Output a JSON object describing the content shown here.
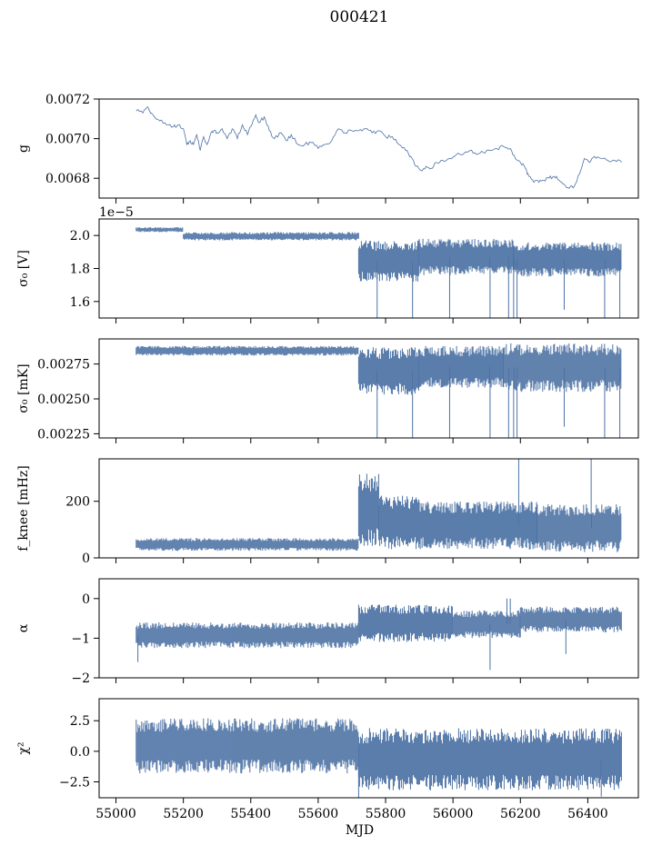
{
  "suptitle": "000421",
  "colors": {
    "series": "#4c72a4",
    "frame": "#000000",
    "background": "#ffffff"
  },
  "chart_data": [
    {
      "type": "line",
      "ylabel": "g",
      "xlim": [
        54950,
        56550
      ],
      "ylim": [
        0.0067,
        0.0072
      ],
      "yticks": [
        {
          "v": 0.0068,
          "label": "0.0068"
        },
        {
          "v": 0.007,
          "label": "0.0070"
        },
        {
          "v": 0.0072,
          "label": "0.0072"
        }
      ],
      "x": [
        55060,
        55080,
        55095,
        55105,
        55115,
        55130,
        55150,
        55170,
        55185,
        55200,
        55210,
        55220,
        55230,
        55240,
        55250,
        55260,
        55270,
        55280,
        55290,
        55300,
        55315,
        55330,
        55345,
        55360,
        55375,
        55390,
        55400,
        55415,
        55425,
        55440,
        55455,
        55470,
        55490,
        55505,
        55520,
        55540,
        55560,
        55580,
        55600,
        55620,
        55640,
        55660,
        55680,
        55700,
        55720,
        55740,
        55760,
        55780,
        55800,
        55820,
        55840,
        55860,
        55875,
        55890,
        55905,
        55920,
        55935,
        55950,
        55970,
        55990,
        56010,
        56030,
        56050,
        56070,
        56090,
        56110,
        56130,
        56150,
        56170,
        56185,
        56200,
        56215,
        56225,
        56240,
        56255,
        56270,
        56285,
        56300,
        56315,
        56330,
        56345,
        56360,
        56375,
        56390,
        56405,
        56420,
        56440,
        56460,
        56480,
        56500
      ],
      "y": [
        0.00714,
        0.00713,
        0.00716,
        0.00713,
        0.00711,
        0.00709,
        0.00707,
        0.00706,
        0.00707,
        0.00705,
        0.00697,
        0.00699,
        0.00697,
        0.00702,
        0.00694,
        0.00701,
        0.00697,
        0.00702,
        0.00704,
        0.00703,
        0.00705,
        0.007,
        0.00705,
        0.007,
        0.00707,
        0.00702,
        0.00706,
        0.00712,
        0.00708,
        0.00711,
        0.00704,
        0.007,
        0.00703,
        0.00699,
        0.00702,
        0.00697,
        0.00697,
        0.00698,
        0.00695,
        0.00697,
        0.00699,
        0.00705,
        0.00703,
        0.00704,
        0.00704,
        0.00705,
        0.00703,
        0.00704,
        0.00701,
        0.00701,
        0.00697,
        0.00694,
        0.00691,
        0.00686,
        0.00684,
        0.00686,
        0.00685,
        0.00688,
        0.00689,
        0.0069,
        0.00692,
        0.00692,
        0.00694,
        0.00692,
        0.00693,
        0.00694,
        0.00695,
        0.00696,
        0.00695,
        0.0069,
        0.00688,
        0.00685,
        0.00681,
        0.00678,
        0.00678,
        0.00679,
        0.0068,
        0.00681,
        0.00679,
        0.00677,
        0.00675,
        0.00676,
        0.00682,
        0.0069,
        0.00688,
        0.00691,
        0.0069,
        0.00689,
        0.00689,
        0.00688
      ]
    },
    {
      "type": "area",
      "ylabel": "σ₀ [V]",
      "offset_text": "1e−5",
      "xlim": [
        54950,
        56550
      ],
      "ylim": [
        1.5,
        2.1
      ],
      "yticks": [
        {
          "v": 1.6,
          "label": "1.6"
        },
        {
          "v": 1.8,
          "label": "1.8"
        },
        {
          "v": 2.0,
          "label": "2.0"
        }
      ],
      "segments": [
        {
          "x": [
            55060,
            55200
          ],
          "low": 2.02,
          "high": 2.05
        },
        {
          "x": [
            55200,
            55450
          ],
          "low": 1.97,
          "high": 2.02
        },
        {
          "x": [
            55450,
            55720
          ],
          "low": 1.97,
          "high": 2.02
        },
        {
          "x": [
            55720,
            55900
          ],
          "low": 1.72,
          "high": 1.97
        },
        {
          "x": [
            55900,
            56180
          ],
          "low": 1.76,
          "high": 1.98
        },
        {
          "x": [
            56180,
            56500
          ],
          "low": 1.75,
          "high": 1.96
        }
      ],
      "spikes": [
        {
          "x": 55775,
          "y": 1.5
        },
        {
          "x": 55880,
          "y": 1.5
        },
        {
          "x": 55990,
          "y": 1.5
        },
        {
          "x": 56110,
          "y": 1.5
        },
        {
          "x": 56165,
          "y": 1.5
        },
        {
          "x": 56180,
          "y": 1.5
        },
        {
          "x": 56190,
          "y": 1.5
        },
        {
          "x": 56330,
          "y": 1.55
        },
        {
          "x": 56450,
          "y": 1.5
        },
        {
          "x": 56495,
          "y": 1.5
        }
      ]
    },
    {
      "type": "area",
      "ylabel": "σ₀ [mK]",
      "xlim": [
        54950,
        56550
      ],
      "ylim": [
        0.00222,
        0.00293
      ],
      "yticks": [
        {
          "v": 0.00225,
          "label": "0.00225"
        },
        {
          "v": 0.0025,
          "label": "0.00250"
        },
        {
          "v": 0.00275,
          "label": "0.00275"
        }
      ],
      "segments": [
        {
          "x": [
            55060,
            55720
          ],
          "low": 0.00281,
          "high": 0.00288
        },
        {
          "x": [
            55720,
            55900
          ],
          "low": 0.00253,
          "high": 0.00287
        },
        {
          "x": [
            55900,
            56150
          ],
          "low": 0.00258,
          "high": 0.00288
        },
        {
          "x": [
            56150,
            56500
          ],
          "low": 0.00255,
          "high": 0.0029
        }
      ],
      "spikes": [
        {
          "x": 55775,
          "y": 0.00222
        },
        {
          "x": 55880,
          "y": 0.00222
        },
        {
          "x": 55990,
          "y": 0.00222
        },
        {
          "x": 56110,
          "y": 0.00222
        },
        {
          "x": 56165,
          "y": 0.00222
        },
        {
          "x": 56180,
          "y": 0.00222
        },
        {
          "x": 56190,
          "y": 0.00222
        },
        {
          "x": 56330,
          "y": 0.0023
        },
        {
          "x": 56450,
          "y": 0.00222
        },
        {
          "x": 56495,
          "y": 0.00222
        }
      ]
    },
    {
      "type": "area",
      "ylabel": "f_knee [mHz]",
      "xlim": [
        54950,
        56550
      ],
      "ylim": [
        0,
        350
      ],
      "yticks": [
        {
          "v": 0,
          "label": "0"
        },
        {
          "v": 200,
          "label": "200"
        }
      ],
      "segments": [
        {
          "x": [
            55060,
            55720
          ],
          "low": 25,
          "high": 70
        },
        {
          "x": [
            55720,
            55780
          ],
          "low": 40,
          "high": 300
        },
        {
          "x": [
            55780,
            55900
          ],
          "low": 30,
          "high": 220
        },
        {
          "x": [
            55900,
            56250
          ],
          "low": 30,
          "high": 200
        },
        {
          "x": [
            56250,
            56500
          ],
          "low": 20,
          "high": 190
        }
      ],
      "spikes": [
        {
          "x": 56195,
          "y": 350
        },
        {
          "x": 56410,
          "y": 350
        }
      ]
    },
    {
      "type": "area",
      "ylabel": "α",
      "xlim": [
        54950,
        56550
      ],
      "ylim": [
        -2,
        0.5
      ],
      "yticks": [
        {
          "v": -2,
          "label": "−2"
        },
        {
          "v": -1,
          "label": "−1"
        },
        {
          "v": 0,
          "label": "0"
        }
      ],
      "segments": [
        {
          "x": [
            55060,
            55720
          ],
          "low": -1.25,
          "high": -0.6
        },
        {
          "x": [
            55720,
            56000
          ],
          "low": -1.1,
          "high": -0.15
        },
        {
          "x": [
            56000,
            56200
          ],
          "low": -1.0,
          "high": -0.3
        },
        {
          "x": [
            56200,
            56500
          ],
          "low": -0.85,
          "high": -0.2
        }
      ],
      "spikes": [
        {
          "x": 55065,
          "y": -1.6
        },
        {
          "x": 56110,
          "y": -1.8
        },
        {
          "x": 56335,
          "y": -1.4
        },
        {
          "x": 56160,
          "y": 0.0
        },
        {
          "x": 56170,
          "y": 0.0
        }
      ]
    },
    {
      "type": "area",
      "ylabel": "χ²",
      "xlabel": "MJD",
      "xlim": [
        54950,
        56550
      ],
      "ylim": [
        -3.8,
        4.3
      ],
      "yticks": [
        {
          "v": -2.5,
          "label": "−2.5"
        },
        {
          "v": 0.0,
          "label": "0.0"
        },
        {
          "v": 2.5,
          "label": "2.5"
        }
      ],
      "xticks": [
        {
          "v": 55000,
          "label": "55000"
        },
        {
          "v": 55200,
          "label": "55200"
        },
        {
          "v": 55400,
          "label": "55400"
        },
        {
          "v": 55600,
          "label": "55600"
        },
        {
          "v": 55800,
          "label": "55800"
        },
        {
          "v": 56000,
          "label": "56000"
        },
        {
          "v": 56200,
          "label": "56200"
        },
        {
          "v": 56400,
          "label": "56400"
        }
      ],
      "segments": [
        {
          "x": [
            55060,
            55720
          ],
          "low": -1.8,
          "high": 2.7
        },
        {
          "x": [
            55720,
            56500
          ],
          "low": -3.2,
          "high": 1.9
        }
      ],
      "spikes": [
        {
          "x": 55720,
          "y": -3.8
        },
        {
          "x": 56440,
          "y": -3.7
        }
      ]
    }
  ]
}
